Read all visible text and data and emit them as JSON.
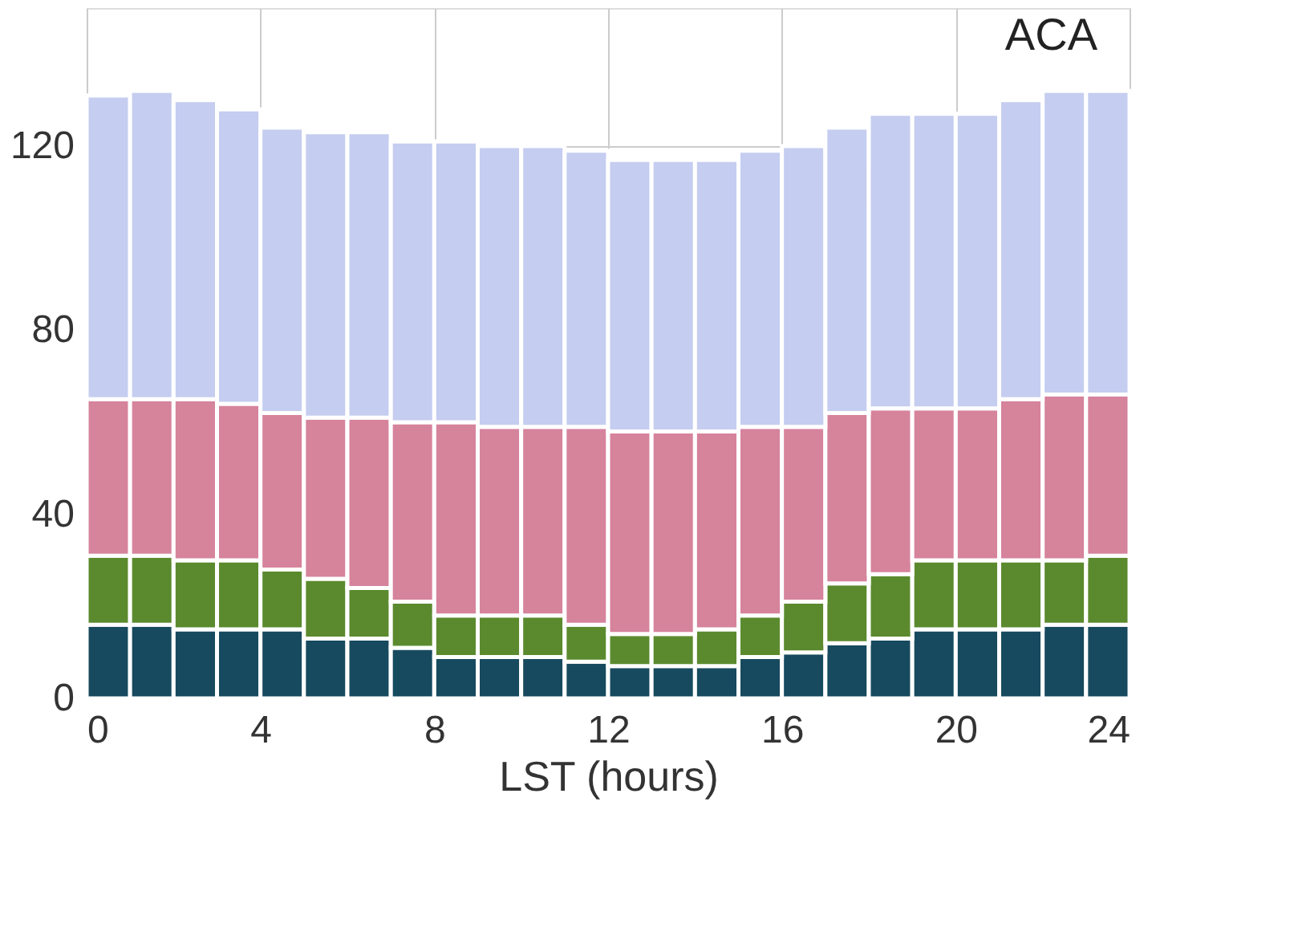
{
  "chart_data": {
    "type": "bar",
    "stacked": true,
    "x": [
      0.5,
      1.5,
      2.5,
      3.5,
      4.5,
      5.5,
      6.5,
      7.5,
      8.5,
      9.5,
      10.5,
      11.5,
      12.5,
      13.5,
      14.5,
      15.5,
      16.5,
      17.5,
      18.5,
      19.5,
      20.5,
      21.5,
      22.5,
      23.5
    ],
    "series": [
      {
        "color": "#174a5e",
        "values": [
          16,
          16,
          15,
          15,
          15,
          13,
          13,
          11,
          9,
          9,
          9,
          8,
          7,
          7,
          7,
          9,
          10,
          12,
          13,
          15,
          15,
          15,
          16,
          16
        ]
      },
      {
        "color": "#5b8a2e",
        "values": [
          15,
          15,
          15,
          15,
          13,
          13,
          11,
          10,
          9,
          9,
          9,
          8,
          7,
          7,
          8,
          9,
          11,
          13,
          14,
          15,
          15,
          15,
          14,
          15
        ]
      },
      {
        "color": "#d6839c",
        "values": [
          34,
          34,
          35,
          34,
          34,
          35,
          37,
          39,
          42,
          41,
          41,
          43,
          44,
          44,
          43,
          41,
          38,
          37,
          36,
          33,
          33,
          35,
          36,
          35
        ]
      },
      {
        "color": "#c5cdf0",
        "values": [
          66,
          67,
          65,
          64,
          62,
          62,
          62,
          61,
          61,
          61,
          61,
          60,
          59,
          59,
          59,
          60,
          61,
          62,
          64,
          64,
          64,
          65,
          66,
          66
        ]
      }
    ],
    "xlabel": "LST  (hours)",
    "xlim": [
      0,
      24
    ],
    "xticks": [
      0,
      4,
      8,
      12,
      16,
      20,
      24
    ],
    "ylim": [
      0,
      150
    ],
    "yticks": [
      0,
      40,
      80,
      120
    ],
    "grid": true,
    "annotations": [
      "ACA"
    ]
  }
}
